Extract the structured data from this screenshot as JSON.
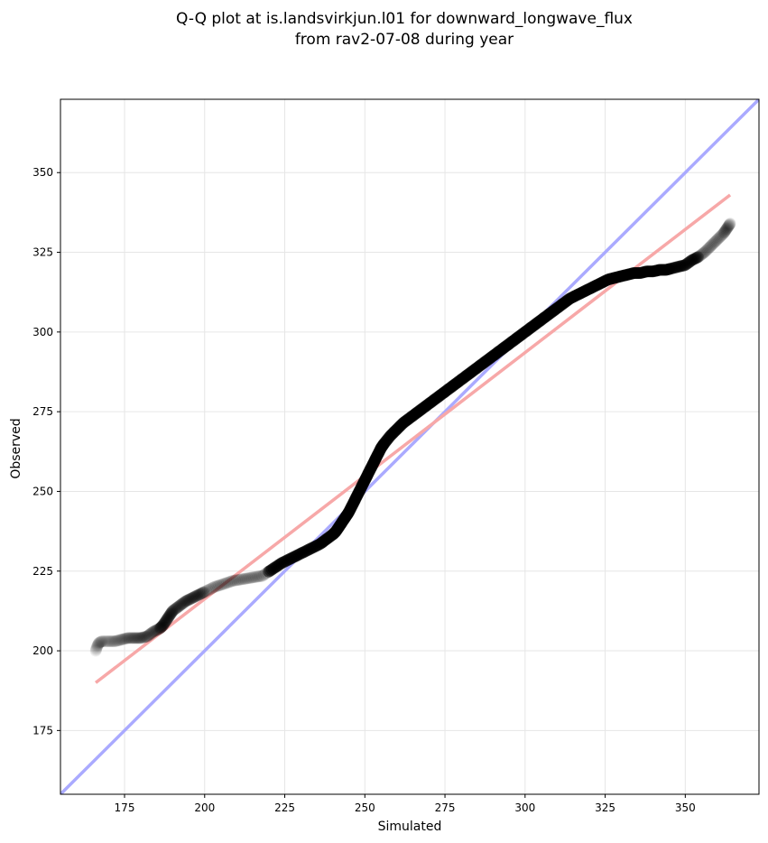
{
  "chart_data": {
    "type": "scatter",
    "title": "Q-Q plot at is.landsvirkjun.l01 for downward_longwave_flux",
    "subtitle": "from rav2-07-08 during year",
    "xlabel": "Simulated",
    "ylabel": "Observed",
    "xlim": [
      155,
      373
    ],
    "ylim": [
      155,
      373
    ],
    "xticks": [
      175,
      200,
      225,
      250,
      275,
      300,
      325,
      350
    ],
    "yticks": [
      175,
      200,
      225,
      250,
      275,
      300,
      325,
      350
    ],
    "grid": true,
    "colors": {
      "points": "#000000",
      "identity_line": "#aaaaff",
      "fit_line": "#f7a8a8"
    },
    "reference_lines": [
      {
        "kind": "identity",
        "x": [
          155,
          373
        ],
        "y": [
          155,
          373
        ]
      },
      {
        "kind": "fit",
        "x": [
          166,
          364
        ],
        "y": [
          190,
          343
        ]
      }
    ],
    "qq_curve": {
      "x": [
        166,
        166.5,
        167,
        168,
        170,
        172,
        174,
        176,
        178,
        180,
        182,
        184,
        186,
        187,
        188,
        189,
        190,
        192,
        194,
        196,
        198,
        200,
        203,
        206,
        209,
        212,
        215,
        218,
        221,
        224,
        227,
        230,
        233,
        236,
        238,
        240,
        241,
        242,
        243,
        244,
        245,
        246,
        247,
        248,
        249,
        250,
        251,
        252,
        253,
        254,
        255,
        256,
        258,
        260,
        262,
        264,
        266,
        268,
        270,
        272,
        274,
        276,
        278,
        280,
        282,
        284,
        286,
        288,
        290,
        292,
        294,
        296,
        298,
        300,
        302,
        304,
        306,
        308,
        310,
        312,
        314,
        316,
        318,
        320,
        322,
        324,
        326,
        328,
        330,
        332,
        334,
        336,
        338,
        340,
        342,
        344,
        346,
        348,
        350,
        352,
        354,
        356,
        358,
        360,
        362,
        363,
        364
      ],
      "y": [
        200,
        201.5,
        202.5,
        203,
        203,
        203,
        203.5,
        204,
        204,
        204,
        204.5,
        206,
        207,
        208,
        209.5,
        211,
        212.5,
        214,
        215.5,
        216.5,
        217.5,
        218.5,
        220,
        221,
        222,
        222.5,
        223,
        223.5,
        225.5,
        227.5,
        229,
        230.5,
        232,
        233.5,
        235,
        236.5,
        237.5,
        239,
        240.5,
        242,
        243.5,
        245.5,
        247.5,
        249.5,
        251.5,
        253.5,
        255.5,
        257.5,
        259.5,
        261.5,
        263.5,
        265,
        267.5,
        269.5,
        271.5,
        273,
        274.5,
        276,
        277.5,
        279,
        280.5,
        282,
        283.5,
        285,
        286.5,
        288,
        289.5,
        291,
        292.5,
        294,
        295.5,
        297,
        298.5,
        300,
        301.5,
        303,
        304.5,
        306,
        307.5,
        309,
        310.5,
        311.5,
        312.5,
        313.5,
        314.5,
        315.5,
        316.5,
        317,
        317.5,
        318,
        318.5,
        318.5,
        319,
        319,
        319.5,
        319.5,
        320,
        320.5,
        321,
        322.5,
        323.5,
        325,
        327,
        329,
        331,
        332.5,
        334
      ],
      "x_units": "same as axes",
      "y_units": "same as axes"
    }
  }
}
